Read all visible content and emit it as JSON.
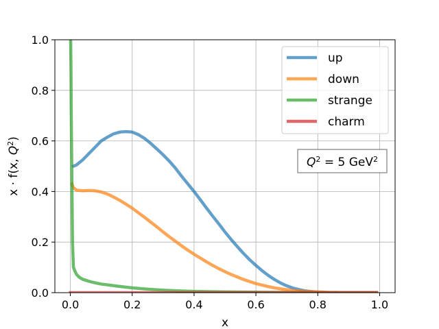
{
  "chart_data": {
    "type": "line",
    "title": "",
    "xlabel": "x",
    "ylabel_parts": {
      "prefix": "x · f(x, ",
      "var": "Q",
      "sup": "2",
      "suffix": ")"
    },
    "xlim": [
      -0.05,
      1.05
    ],
    "ylim": [
      0.0,
      1.0
    ],
    "xticks": [
      0.0,
      0.2,
      0.4,
      0.6,
      0.8,
      1.0
    ],
    "xtick_labels": [
      "0.0",
      "0.2",
      "0.4",
      "0.6",
      "0.8",
      "1.0"
    ],
    "yticks": [
      0.0,
      0.2,
      0.4,
      0.6,
      0.8,
      1.0
    ],
    "ytick_labels": [
      "0.0",
      "0.2",
      "0.4",
      "0.6",
      "0.8",
      "1.0"
    ],
    "grid": true,
    "legend_position": "top-right",
    "annotation": {
      "var": "Q",
      "sup": "2",
      "eq": " = 5 GeV",
      "sup2": "2"
    },
    "series": [
      {
        "name": "up",
        "color": "#1f77b4",
        "x": [
          0.01,
          0.02,
          0.04,
          0.06,
          0.08,
          0.1,
          0.12,
          0.14,
          0.16,
          0.18,
          0.2,
          0.22,
          0.24,
          0.26,
          0.28,
          0.3,
          0.32,
          0.34,
          0.36,
          0.38,
          0.4,
          0.42,
          0.44,
          0.46,
          0.48,
          0.5,
          0.52,
          0.54,
          0.56,
          0.58,
          0.6,
          0.62,
          0.64,
          0.66,
          0.68,
          0.7,
          0.72,
          0.74,
          0.76,
          0.78,
          0.8,
          0.82,
          0.84,
          0.86,
          0.88,
          0.9,
          0.92,
          0.94,
          0.96,
          0.98,
          0.99
        ],
        "y": [
          0.5,
          0.505,
          0.525,
          0.55,
          0.575,
          0.6,
          0.615,
          0.628,
          0.635,
          0.637,
          0.635,
          0.625,
          0.61,
          0.59,
          0.568,
          0.545,
          0.52,
          0.492,
          0.46,
          0.43,
          0.4,
          0.368,
          0.335,
          0.303,
          0.272,
          0.24,
          0.21,
          0.182,
          0.155,
          0.13,
          0.108,
          0.087,
          0.068,
          0.052,
          0.038,
          0.027,
          0.018,
          0.012,
          0.007,
          0.004,
          0.002,
          0.001,
          0.0,
          0.0,
          0.0,
          0.0,
          0.0,
          0.0,
          0.0,
          0.0,
          0.0
        ]
      },
      {
        "name": "down",
        "color": "#ff7f0e",
        "x": [
          0.005,
          0.01,
          0.02,
          0.04,
          0.06,
          0.08,
          0.1,
          0.12,
          0.14,
          0.16,
          0.18,
          0.2,
          0.22,
          0.24,
          0.26,
          0.28,
          0.3,
          0.32,
          0.34,
          0.36,
          0.38,
          0.4,
          0.42,
          0.44,
          0.46,
          0.48,
          0.5,
          0.52,
          0.54,
          0.56,
          0.58,
          0.6,
          0.62,
          0.64,
          0.66,
          0.68,
          0.7,
          0.72,
          0.74,
          0.76,
          0.78,
          0.8,
          0.82,
          0.84,
          0.86,
          0.88,
          0.9,
          0.92,
          0.94,
          0.96,
          0.98,
          0.99
        ],
        "y": [
          0.43,
          0.415,
          0.405,
          0.403,
          0.404,
          0.403,
          0.398,
          0.39,
          0.378,
          0.365,
          0.35,
          0.334,
          0.316,
          0.298,
          0.279,
          0.26,
          0.24,
          0.221,
          0.203,
          0.185,
          0.168,
          0.152,
          0.137,
          0.122,
          0.108,
          0.095,
          0.083,
          0.072,
          0.062,
          0.052,
          0.044,
          0.036,
          0.03,
          0.024,
          0.019,
          0.015,
          0.012,
          0.009,
          0.007,
          0.005,
          0.004,
          0.003,
          0.002,
          0.001,
          0.001,
          0.0,
          0.0,
          0.0,
          0.0,
          0.0,
          0.0,
          0.0
        ]
      },
      {
        "name": "strange",
        "color": "#2ca02c",
        "x": [
          0.001,
          0.002,
          0.003,
          0.005,
          0.007,
          0.01,
          0.015,
          0.02,
          0.03,
          0.04,
          0.06,
          0.08,
          0.1,
          0.15,
          0.2,
          0.25,
          0.3,
          0.35,
          0.4,
          0.5,
          0.6,
          0.7,
          0.8,
          0.9,
          0.99
        ],
        "y": [
          1.0,
          0.9,
          0.7,
          0.45,
          0.2,
          0.1,
          0.085,
          0.072,
          0.06,
          0.053,
          0.045,
          0.039,
          0.034,
          0.026,
          0.019,
          0.014,
          0.01,
          0.007,
          0.005,
          0.003,
          0.002,
          0.001,
          0.0,
          0.0,
          0.0
        ]
      },
      {
        "name": "charm",
        "color": "#d62728",
        "x": [
          0.0,
          0.2,
          0.4,
          0.6,
          0.8,
          0.99
        ],
        "y": [
          0.0,
          0.0,
          0.0,
          0.0,
          0.0,
          0.0
        ]
      }
    ]
  }
}
